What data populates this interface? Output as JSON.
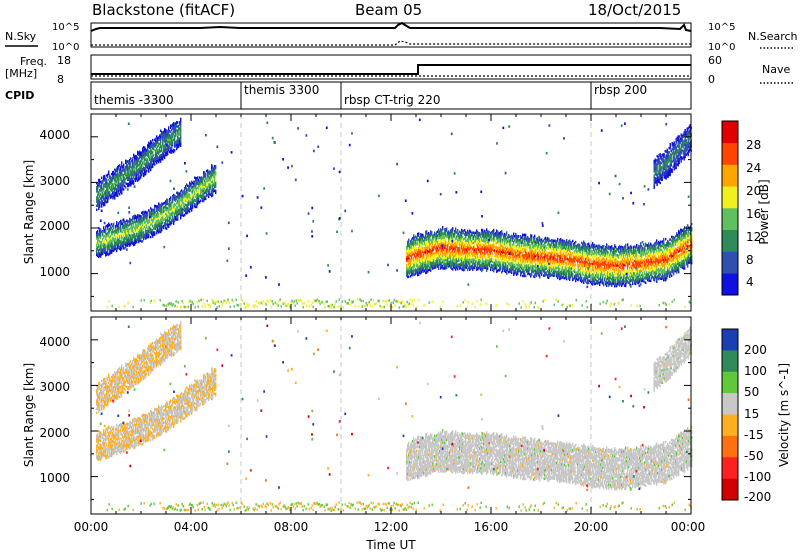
{
  "header": {
    "title": "Blackstone (fitACF)",
    "beam": "Beam 05",
    "date": "18/Oct/2015"
  },
  "top_panels": {
    "nsky_label": "N.Sky",
    "nsky_ticks": [
      "10^5",
      "10^0"
    ],
    "nsearch_label": "N.Search",
    "nsearch_ticks": [
      "10^5",
      "10^0"
    ],
    "freq_label": "Freq.",
    "freq_unit": "[MHz]",
    "freq_ticks": [
      "18",
      "8"
    ],
    "nave_label": "Nave",
    "nave_ticks": [
      "60",
      "0"
    ],
    "cpid_label": "CPID",
    "cpid_segments": [
      {
        "label": "themis -3300",
        "start": "00:00"
      },
      {
        "label": "themis 3300",
        "start": "06:00"
      },
      {
        "label": "rbsp CT-trig 220",
        "start": "10:00"
      },
      {
        "label": "rbsp 200",
        "start": "20:00"
      }
    ]
  },
  "chart_data": [
    {
      "type": "heatmap",
      "title": "Power",
      "ylabel": "Slant Range [km]",
      "yticks": [
        "1000",
        "2000",
        "3000",
        "4000"
      ],
      "ylim": [
        180,
        4500
      ],
      "xlim": [
        0,
        24
      ],
      "colorbar_label": "Power [dB]",
      "colorbar_ticks": [
        "4",
        "8",
        "12",
        "16",
        "20",
        "24",
        "28"
      ],
      "colorbar_range": [
        0,
        30
      ],
      "colors": [
        "#1010e0",
        "#3050b0",
        "#2e8b57",
        "#60c060",
        "#f0f020",
        "#ffa500",
        "#ff4500",
        "#e00000"
      ],
      "series": [
        {
          "name": "",
          "x": [
            0.2,
            1.0,
            2.0,
            3.0,
            4.0,
            5.0
          ],
          "y": [
            1650,
            1800,
            2000,
            2300,
            2700,
            3100
          ],
          "level": 14
        },
        {
          "name": "",
          "x": [
            0.2,
            1.0,
            2.0,
            2.8,
            3.6
          ],
          "y": [
            2700,
            3000,
            3400,
            3800,
            4100
          ],
          "level": 10
        },
        {
          "name": "",
          "x": [
            12.6,
            13.0,
            14.0,
            15.0,
            16.0,
            17.0,
            18.0,
            19.0,
            20.0,
            21.0,
            22.0,
            23.0,
            24.0
          ],
          "y": [
            1300,
            1400,
            1550,
            1500,
            1500,
            1400,
            1350,
            1300,
            1200,
            1150,
            1200,
            1300,
            1650
          ],
          "level": 22
        },
        {
          "name": "",
          "x": [
            22.5,
            23.0,
            23.5,
            24.0
          ],
          "y": [
            3200,
            3400,
            3700,
            4000
          ],
          "level": 8
        }
      ]
    },
    {
      "type": "heatmap",
      "title": "Velocity",
      "ylabel": "Slant Range [km]",
      "yticks": [
        "1000",
        "2000",
        "3000",
        "4000"
      ],
      "ylim": [
        180,
        4500
      ],
      "xlim": [
        0,
        24
      ],
      "xticks": [
        "00:00",
        "04:00",
        "08:00",
        "12:00",
        "16:00",
        "20:00",
        "00:00"
      ],
      "xlabel": "Time UT",
      "colorbar_label": "Velocity [m s^-1]",
      "colorbar_ticks": [
        "200",
        "100",
        "50",
        "15",
        "-15",
        "-50",
        "-100",
        "-200"
      ],
      "colors": [
        "#1a3fb0",
        "#2e8b57",
        "#60c83a",
        "#c8c8c8",
        "#ffb020",
        "#ff7010",
        "#ff2020",
        "#d00000"
      ]
    }
  ]
}
